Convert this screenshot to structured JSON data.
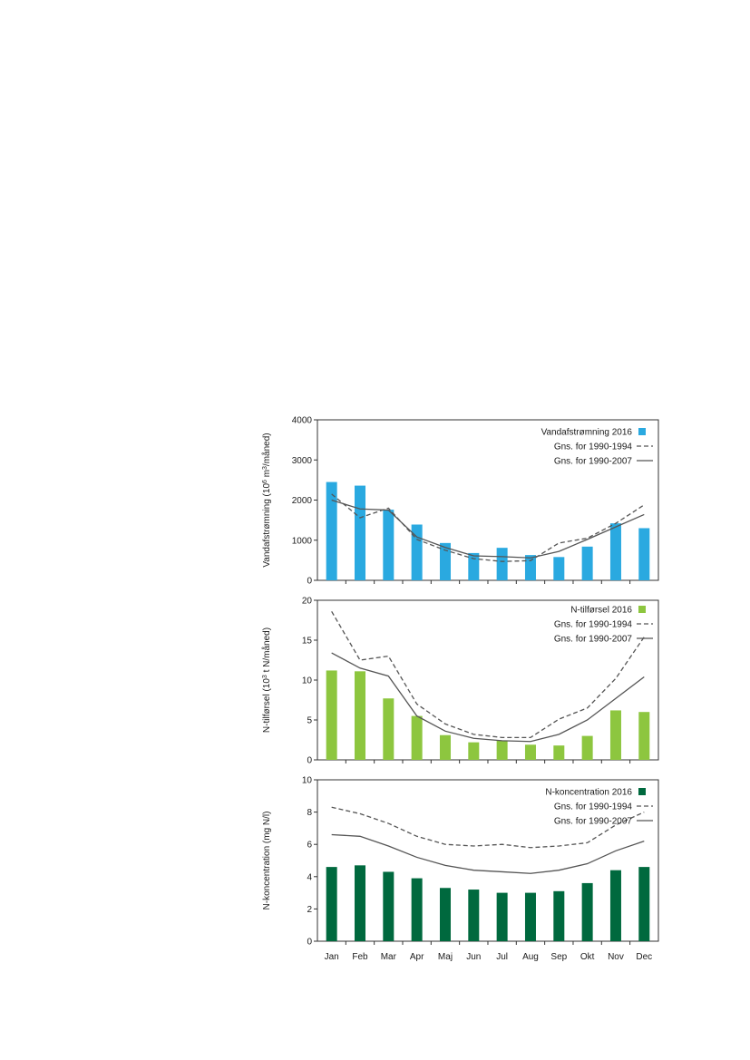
{
  "colors": {
    "flow": "#2aa9e0",
    "nload": "#8dc63f",
    "nconc": "#00693e",
    "line": "#555555",
    "axis": "#333333"
  },
  "chart_data": [
    {
      "type": "bar",
      "id": "flow",
      "categories": [
        "Jan",
        "Feb",
        "Mar",
        "Apr",
        "Maj",
        "Jun",
        "Jul",
        "Aug",
        "Sep",
        "Okt",
        "Nov",
        "Dec"
      ],
      "ylabel_parts": [
        "Vandafstrømning (10",
        "6",
        " m",
        "3",
        "/måned)"
      ],
      "ylim": [
        0,
        4000
      ],
      "yticks": [
        "0",
        "1000",
        "2000",
        "3000",
        "4000"
      ],
      "series": [
        {
          "name": "Vandafstrømning 2016",
          "kind": "bar",
          "values": [
            2450,
            2360,
            1760,
            1390,
            930,
            680,
            810,
            630,
            580,
            840,
            1420,
            1300
          ]
        },
        {
          "name": "Gns. for 1990-1994",
          "kind": "dashed",
          "values": [
            2150,
            1560,
            1800,
            1020,
            750,
            540,
            470,
            490,
            930,
            1050,
            1420,
            1880
          ]
        },
        {
          "name": "Gns. for 1990-2007",
          "kind": "solid",
          "values": [
            2000,
            1780,
            1750,
            1080,
            820,
            610,
            590,
            560,
            720,
            1020,
            1330,
            1640
          ]
        }
      ]
    },
    {
      "type": "bar",
      "id": "nload",
      "categories": [
        "Jan",
        "Feb",
        "Mar",
        "Apr",
        "Maj",
        "Jun",
        "Jul",
        "Aug",
        "Sep",
        "Okt",
        "Nov",
        "Dec"
      ],
      "ylabel_parts": [
        "N-tilførsel (10",
        "3",
        " t N/måned)"
      ],
      "ylim": [
        0,
        20
      ],
      "yticks": [
        "0",
        "5",
        "10",
        "15",
        "20"
      ],
      "series": [
        {
          "name": "N-tilførsel 2016",
          "kind": "bar",
          "values": [
            11.2,
            11.1,
            7.7,
            5.5,
            3.1,
            2.2,
            2.4,
            1.9,
            1.8,
            3.0,
            6.2,
            6.0
          ]
        },
        {
          "name": "Gns. for 1990-1994",
          "kind": "dashed",
          "values": [
            18.6,
            12.5,
            13.0,
            7.0,
            4.5,
            3.2,
            2.8,
            2.8,
            5.1,
            6.5,
            10.2,
            15.4
          ]
        },
        {
          "name": "Gns. for 1990-2007",
          "kind": "solid",
          "values": [
            13.4,
            11.5,
            10.5,
            5.5,
            3.6,
            2.7,
            2.4,
            2.3,
            3.2,
            5.0,
            7.7,
            10.4
          ]
        }
      ]
    },
    {
      "type": "bar",
      "id": "nconc",
      "categories": [
        "Jan",
        "Feb",
        "Mar",
        "Apr",
        "Maj",
        "Jun",
        "Jul",
        "Aug",
        "Sep",
        "Okt",
        "Nov",
        "Dec"
      ],
      "ylabel_parts": [
        "N-koncentration (mg N/l)"
      ],
      "ylim": [
        0,
        10
      ],
      "yticks": [
        "0",
        "2",
        "4",
        "6",
        "8",
        "10"
      ],
      "series": [
        {
          "name": "N-koncentration 2016",
          "kind": "bar",
          "values": [
            4.6,
            4.7,
            4.3,
            3.9,
            3.3,
            3.2,
            3.0,
            3.0,
            3.1,
            3.6,
            4.4,
            4.6
          ]
        },
        {
          "name": "Gns. for 1990-1994",
          "kind": "dashed",
          "values": [
            8.3,
            7.9,
            7.3,
            6.5,
            6.0,
            5.9,
            6.0,
            5.8,
            5.9,
            6.1,
            7.2,
            8.0
          ]
        },
        {
          "name": "Gns. for 1990-2007",
          "kind": "solid",
          "values": [
            6.6,
            6.5,
            5.9,
            5.2,
            4.7,
            4.4,
            4.3,
            4.2,
            4.4,
            4.8,
            5.6,
            6.2
          ]
        }
      ]
    }
  ]
}
